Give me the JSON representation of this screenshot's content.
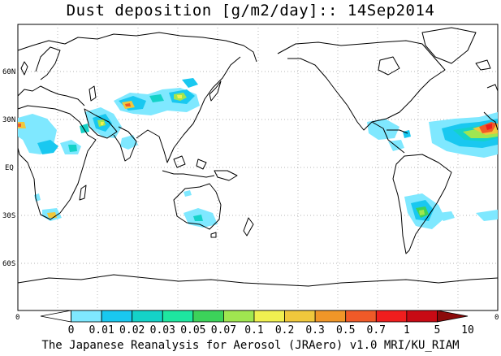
{
  "title": "Dust deposition [g/m2/day]:: 14Sep2014",
  "lat_ticks": [
    "60N",
    "30N",
    "EQ",
    "30S",
    "60S"
  ],
  "lon_ticks": [
    "0",
    "0"
  ],
  "colorbar": {
    "labels": [
      "0",
      "0.01",
      "0.02",
      "0.03",
      "0.05",
      "0.07",
      "0.1",
      "0.2",
      "0.3",
      "0.5",
      "0.7",
      "1",
      "5",
      "10"
    ],
    "colors": [
      "#ffffff",
      "#7fe8ff",
      "#19c8f0",
      "#14d2c8",
      "#1ee6a0",
      "#3cd25a",
      "#a0e650",
      "#f0f050",
      "#f0c83c",
      "#f09628",
      "#f05a28",
      "#f01e1e",
      "#c80a14",
      "#8c0a0a"
    ]
  },
  "credit": "The Japanese Reanalysis for Aerosol (JRAero) v1.0 MRI/KU_RIAM"
}
